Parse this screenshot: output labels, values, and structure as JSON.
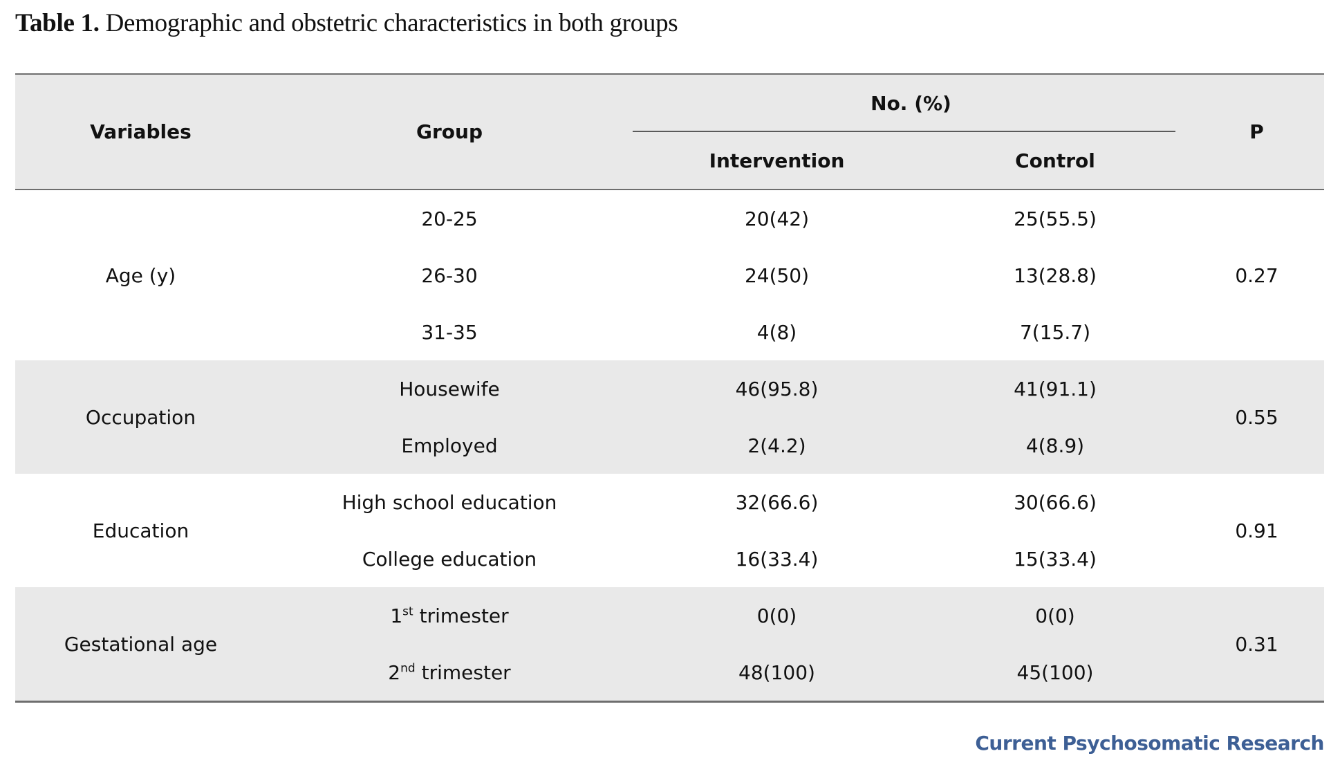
{
  "caption": {
    "label": "Table 1.",
    "text": " Demographic and obstetric characteristics in both groups"
  },
  "header": {
    "variables": "Variables",
    "group": "Group",
    "no_pct": "No. (%)",
    "intervention": "Intervention",
    "control": "Control",
    "p": "P"
  },
  "sections": [
    {
      "variable": "Age (y)",
      "p": "0.27",
      "rows": [
        {
          "group": "20-25",
          "intervention": "20(42)",
          "control": "25(55.5)"
        },
        {
          "group": "26-30",
          "intervention": "24(50)",
          "control": "13(28.8)"
        },
        {
          "group": "31-35",
          "intervention": "4(8)",
          "control": "7(15.7)"
        }
      ]
    },
    {
      "variable": "Occupation",
      "p": "0.55",
      "rows": [
        {
          "group": "Housewife",
          "intervention": "46(95.8)",
          "control": "41(91.1)"
        },
        {
          "group": "Employed",
          "intervention": "2(4.2)",
          "control": "4(8.9)"
        }
      ]
    },
    {
      "variable": "Education",
      "p": "0.91",
      "rows": [
        {
          "group": "High school education",
          "intervention": "32(66.6)",
          "control": "30(66.6)"
        },
        {
          "group": "College education",
          "intervention": "16(33.4)",
          "control": "15(33.4)"
        }
      ]
    },
    {
      "variable": "Gestational age",
      "p": "0.31",
      "rows": [
        {
          "group_num": "1",
          "group_sup": "st",
          "group_rest": " trimester",
          "intervention": "0(0)",
          "control": "0(0)"
        },
        {
          "group_num": "2",
          "group_sup": "nd",
          "group_rest": " trimester",
          "intervention": "48(100)",
          "control": "45(100)"
        }
      ]
    }
  ],
  "footer": {
    "brand": "Current Psychosomatic Research"
  },
  "colors": {
    "shade": "#e9e9e9",
    "rule": "#6e6e6e",
    "brand": "#3d5f95"
  }
}
